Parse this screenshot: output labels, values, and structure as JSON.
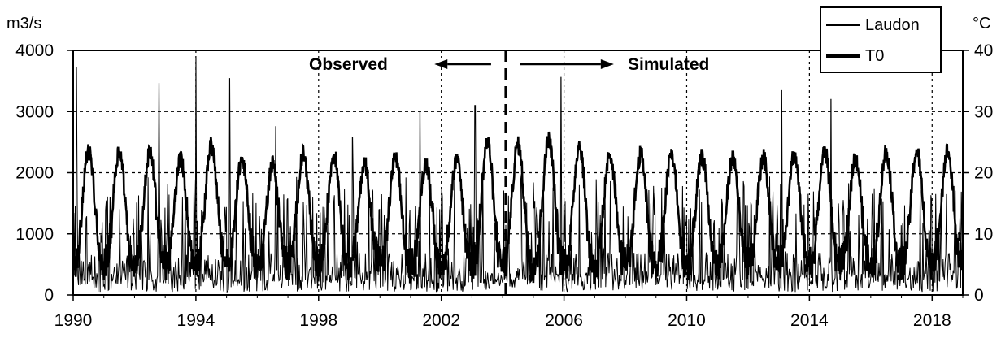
{
  "chart_data": {
    "type": "line",
    "title": "",
    "left_axis": {
      "unit": "m3/s",
      "ticks": [
        0,
        1000,
        2000,
        3000,
        4000
      ],
      "range": [
        0,
        4000
      ]
    },
    "right_axis": {
      "unit": "°C",
      "ticks": [
        0,
        10,
        20,
        30,
        40
      ],
      "range": [
        0,
        40
      ]
    },
    "x_axis": {
      "range": [
        1990,
        2019
      ],
      "ticks": [
        "1990",
        "1994",
        "1998",
        "2002",
        "2006",
        "2010",
        "2014",
        "2018"
      ]
    },
    "grid": true,
    "legend_position": "top-right",
    "series": [
      {
        "name": "Laudon",
        "axis": "left",
        "style": "thin",
        "annual_peaks": [
          {
            "year": 1990.1,
            "value": 3720
          },
          {
            "year": 1991.2,
            "value": 1600
          },
          {
            "year": 1992.8,
            "value": 3460
          },
          {
            "year": 1994.0,
            "value": 3900
          },
          {
            "year": 1995.1,
            "value": 3540
          },
          {
            "year": 1996.6,
            "value": 2760
          },
          {
            "year": 1999.1,
            "value": 2580
          },
          {
            "year": 2001.3,
            "value": 3000
          },
          {
            "year": 2003.1,
            "value": 3100
          },
          {
            "year": 2005.9,
            "value": 3560
          },
          {
            "year": 2013.1,
            "value": 3350
          },
          {
            "year": 2014.7,
            "value": 3200
          }
        ]
      },
      {
        "name": "T0",
        "axis": "right",
        "style": "thick",
        "annual_max": [
          {
            "year": 1991,
            "value": 23.5
          },
          {
            "year": 1992,
            "value": 23.3
          },
          {
            "year": 1993,
            "value": 22.2
          },
          {
            "year": 1994,
            "value": 24.5
          },
          {
            "year": 1995,
            "value": 22.2
          },
          {
            "year": 1996,
            "value": 21.5
          },
          {
            "year": 1997,
            "value": 23.0
          },
          {
            "year": 1998,
            "value": 23.0
          },
          {
            "year": 1999,
            "value": 21.5
          },
          {
            "year": 2000,
            "value": 22.3
          },
          {
            "year": 2001,
            "value": 21.5
          },
          {
            "year": 2002,
            "value": 22.0
          },
          {
            "year": 2003,
            "value": 25.0
          },
          {
            "year": 2004,
            "value": 24.5
          },
          {
            "year": 2005,
            "value": 25.5
          },
          {
            "year": 2006,
            "value": 24.5
          },
          {
            "year": 2007,
            "value": 23.0
          },
          {
            "year": 2008,
            "value": 23.0
          },
          {
            "year": 2009,
            "value": 23.0
          },
          {
            "year": 2010,
            "value": 22.5
          },
          {
            "year": 2011,
            "value": 22.5
          },
          {
            "year": 2012,
            "value": 22.5
          },
          {
            "year": 2013,
            "value": 23.0
          },
          {
            "year": 2014,
            "value": 23.5
          },
          {
            "year": 2015,
            "value": 22.5
          },
          {
            "year": 2016,
            "value": 23.5
          },
          {
            "year": 2017,
            "value": 23.5
          },
          {
            "year": 2018,
            "value": 23.5
          }
        ],
        "annual_min_approx": 5
      }
    ],
    "annotations": [
      {
        "text": "Observed",
        "arrow": "left"
      },
      {
        "text": "Simulated",
        "arrow": "right"
      }
    ],
    "split_year": 2004.1
  }
}
